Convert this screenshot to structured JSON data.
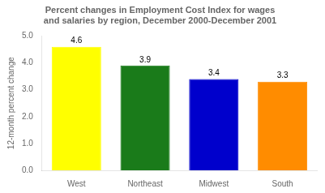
{
  "chart_data": {
    "type": "bar",
    "title": [
      "Percent changes in Employment Cost Index for wages",
      "and salaries by region, December 2000-December 2001"
    ],
    "y_label": "12-month percent change",
    "categories": [
      "West",
      "Northeast",
      "Midwest",
      "South"
    ],
    "values": [
      4.6,
      3.9,
      3.4,
      3.3
    ],
    "colors": [
      "#FFFF00",
      "#1A7B1A",
      "#0000CC",
      "#FF8C00"
    ],
    "ylim": [
      0.0,
      5.0
    ],
    "yticks": [
      {
        "value": 0,
        "label": "0.0"
      },
      {
        "value": 1,
        "label": "1.0"
      },
      {
        "value": 2,
        "label": "2.0"
      },
      {
        "value": 3,
        "label": "3.0"
      },
      {
        "value": 4,
        "label": "4.0"
      },
      {
        "value": 5,
        "label": "5.0"
      }
    ],
    "data_labels": true,
    "grid": false
  }
}
